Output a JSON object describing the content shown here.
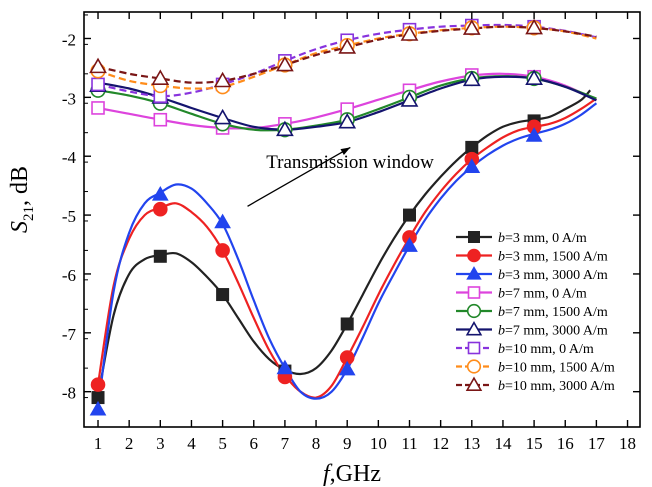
{
  "chart_data": {
    "type": "line",
    "x_ticks": [
      1,
      2,
      3,
      4,
      5,
      6,
      7,
      8,
      9,
      10,
      11,
      12,
      13,
      14,
      15,
      16,
      17,
      18
    ],
    "y_ticks": [
      -8,
      -7,
      -6,
      -5,
      -4,
      -3,
      -2
    ],
    "xlim": [
      0.55,
      18.4
    ],
    "ylim": [
      -8.6,
      -1.55
    ],
    "xlabel": {
      "italic": "f",
      "rest": ",GHz"
    },
    "ylabel": {
      "italic": "S",
      "sub": "21",
      "rest": ", dB"
    },
    "annotation": {
      "text": "Transmission window",
      "arrow_from": [
        5.8,
        -4.85
      ],
      "arrow_to": [
        9.1,
        -3.85
      ],
      "text_pos": [
        6.4,
        -4.2
      ]
    },
    "series": [
      {
        "name": "3 mm, 0 A/m",
        "group": "b=3",
        "color": "#222222",
        "marker": "square",
        "filled": true,
        "dashed": false,
        "points": [
          [
            1,
            -8.1
          ],
          [
            3,
            -5.7
          ],
          [
            5,
            -6.35
          ],
          [
            7,
            -7.65
          ],
          [
            9,
            -6.85
          ],
          [
            11,
            -5.0
          ],
          [
            13,
            -3.85
          ],
          [
            15,
            -3.4
          ]
        ],
        "curve": [
          [
            1,
            -8.1
          ],
          [
            1.5,
            -6.7
          ],
          [
            2,
            -6.0
          ],
          [
            2.5,
            -5.75
          ],
          [
            3,
            -5.68
          ],
          [
            3.5,
            -5.65
          ],
          [
            4,
            -5.8
          ],
          [
            4.5,
            -6.05
          ],
          [
            5,
            -6.35
          ],
          [
            5.5,
            -6.75
          ],
          [
            6,
            -7.15
          ],
          [
            6.5,
            -7.45
          ],
          [
            7,
            -7.63
          ],
          [
            7.5,
            -7.7
          ],
          [
            8,
            -7.6
          ],
          [
            8.5,
            -7.3
          ],
          [
            9,
            -6.85
          ],
          [
            9.5,
            -6.35
          ],
          [
            10,
            -5.85
          ],
          [
            10.5,
            -5.4
          ],
          [
            11,
            -5.0
          ],
          [
            11.5,
            -4.65
          ],
          [
            12,
            -4.35
          ],
          [
            12.5,
            -4.08
          ],
          [
            13,
            -3.85
          ],
          [
            13.5,
            -3.65
          ],
          [
            14,
            -3.5
          ],
          [
            14.5,
            -3.42
          ],
          [
            15,
            -3.38
          ],
          [
            15.5,
            -3.33
          ],
          [
            16,
            -3.2
          ],
          [
            16.5,
            -3.05
          ],
          [
            16.8,
            -2.88
          ]
        ]
      },
      {
        "name": "3 mm, 1500 A/m",
        "group": "b=3",
        "color": "#ee2222",
        "marker": "circle",
        "filled": true,
        "dashed": false,
        "points": [
          [
            1,
            -7.88
          ],
          [
            3,
            -4.9
          ],
          [
            5,
            -5.6
          ],
          [
            7,
            -7.75
          ],
          [
            9,
            -7.42
          ],
          [
            11,
            -5.38
          ],
          [
            13,
            -4.05
          ],
          [
            15,
            -3.5
          ]
        ],
        "curve": [
          [
            1,
            -7.88
          ],
          [
            1.5,
            -6.2
          ],
          [
            2,
            -5.4
          ],
          [
            2.5,
            -5.0
          ],
          [
            3,
            -4.88
          ],
          [
            3.5,
            -4.8
          ],
          [
            4,
            -4.95
          ],
          [
            4.5,
            -5.2
          ],
          [
            5,
            -5.6
          ],
          [
            5.5,
            -6.15
          ],
          [
            6,
            -6.75
          ],
          [
            6.5,
            -7.3
          ],
          [
            7,
            -7.72
          ],
          [
            7.5,
            -8.0
          ],
          [
            8,
            -8.1
          ],
          [
            8.5,
            -7.9
          ],
          [
            9,
            -7.42
          ],
          [
            9.5,
            -6.9
          ],
          [
            10,
            -6.35
          ],
          [
            10.5,
            -5.85
          ],
          [
            11,
            -5.38
          ],
          [
            11.5,
            -4.95
          ],
          [
            12,
            -4.6
          ],
          [
            12.5,
            -4.3
          ],
          [
            13,
            -4.05
          ],
          [
            13.5,
            -3.85
          ],
          [
            14,
            -3.68
          ],
          [
            14.5,
            -3.56
          ],
          [
            15,
            -3.5
          ],
          [
            15.5,
            -3.45
          ],
          [
            16,
            -3.35
          ],
          [
            16.5,
            -3.2
          ],
          [
            17,
            -3.02
          ]
        ]
      },
      {
        "name": "3 mm, 3000 A/m",
        "group": "b=3",
        "color": "#2244ee",
        "marker": "triangle",
        "filled": true,
        "dashed": false,
        "points": [
          [
            1,
            -8.3
          ],
          [
            3,
            -4.65
          ],
          [
            5,
            -5.12
          ],
          [
            7,
            -7.6
          ],
          [
            9,
            -7.62
          ],
          [
            11,
            -5.52
          ],
          [
            13,
            -4.18
          ],
          [
            15,
            -3.65
          ]
        ],
        "curve": [
          [
            1,
            -8.3
          ],
          [
            1.5,
            -6.3
          ],
          [
            2,
            -5.3
          ],
          [
            2.5,
            -4.8
          ],
          [
            3,
            -4.62
          ],
          [
            3.5,
            -4.48
          ],
          [
            4,
            -4.55
          ],
          [
            4.5,
            -4.8
          ],
          [
            5,
            -5.15
          ],
          [
            5.5,
            -5.75
          ],
          [
            6,
            -6.45
          ],
          [
            6.5,
            -7.1
          ],
          [
            7,
            -7.6
          ],
          [
            7.5,
            -8.0
          ],
          [
            8,
            -8.12
          ],
          [
            8.5,
            -8.0
          ],
          [
            9,
            -7.62
          ],
          [
            9.5,
            -7.08
          ],
          [
            10,
            -6.5
          ],
          [
            10.5,
            -6.0
          ],
          [
            11,
            -5.52
          ],
          [
            11.5,
            -5.08
          ],
          [
            12,
            -4.72
          ],
          [
            12.5,
            -4.42
          ],
          [
            13,
            -4.18
          ],
          [
            13.5,
            -3.98
          ],
          [
            14,
            -3.82
          ],
          [
            14.5,
            -3.7
          ],
          [
            15,
            -3.62
          ],
          [
            15.5,
            -3.55
          ],
          [
            16,
            -3.45
          ],
          [
            16.5,
            -3.3
          ],
          [
            17,
            -3.1
          ]
        ]
      },
      {
        "name": "7 mm, 0 A/m",
        "group": "b=7",
        "color": "#dd44dd",
        "marker": "square",
        "filled": false,
        "dashed": false,
        "points": [
          [
            1,
            -3.18
          ],
          [
            3,
            -3.38
          ],
          [
            5,
            -3.52
          ],
          [
            7,
            -3.45
          ],
          [
            9,
            -3.2
          ],
          [
            11,
            -2.88
          ],
          [
            13,
            -2.62
          ],
          [
            15,
            -2.65
          ]
        ],
        "curve": [
          [
            1,
            -3.18
          ],
          [
            2,
            -3.28
          ],
          [
            3,
            -3.38
          ],
          [
            4,
            -3.47
          ],
          [
            5,
            -3.52
          ],
          [
            6,
            -3.52
          ],
          [
            7,
            -3.45
          ],
          [
            8,
            -3.34
          ],
          [
            9,
            -3.2
          ],
          [
            10,
            -3.04
          ],
          [
            11,
            -2.88
          ],
          [
            12,
            -2.73
          ],
          [
            13,
            -2.63
          ],
          [
            14,
            -2.6
          ],
          [
            15,
            -2.65
          ],
          [
            16,
            -2.8
          ],
          [
            17,
            -3.05
          ]
        ]
      },
      {
        "name": "7 mm, 1500 A/m",
        "group": "b=7",
        "color": "#22882a",
        "marker": "circle",
        "filled": false,
        "dashed": false,
        "points": [
          [
            1,
            -2.88
          ],
          [
            3,
            -3.1
          ],
          [
            5,
            -3.45
          ],
          [
            7,
            -3.55
          ],
          [
            9,
            -3.38
          ],
          [
            11,
            -3.0
          ],
          [
            13,
            -2.68
          ],
          [
            15,
            -2.68
          ]
        ],
        "curve": [
          [
            1,
            -2.88
          ],
          [
            2,
            -2.97
          ],
          [
            3,
            -3.1
          ],
          [
            4,
            -3.28
          ],
          [
            5,
            -3.45
          ],
          [
            6,
            -3.55
          ],
          [
            7,
            -3.55
          ],
          [
            8,
            -3.48
          ],
          [
            9,
            -3.38
          ],
          [
            10,
            -3.2
          ],
          [
            11,
            -3.0
          ],
          [
            12,
            -2.8
          ],
          [
            13,
            -2.68
          ],
          [
            14,
            -2.64
          ],
          [
            15,
            -2.68
          ],
          [
            16,
            -2.82
          ],
          [
            17,
            -3.02
          ]
        ]
      },
      {
        "name": "7 mm, 3000 A/m",
        "group": "b=7",
        "color": "#14146e",
        "marker": "triangle",
        "filled": false,
        "dashed": false,
        "points": [
          [
            1,
            -2.8
          ],
          [
            3,
            -3.0
          ],
          [
            5,
            -3.35
          ],
          [
            7,
            -3.55
          ],
          [
            9,
            -3.42
          ],
          [
            11,
            -3.05
          ],
          [
            13,
            -2.7
          ],
          [
            15,
            -2.68
          ]
        ],
        "curve": [
          [
            1,
            -2.75
          ],
          [
            2,
            -2.85
          ],
          [
            3,
            -3.0
          ],
          [
            4,
            -3.18
          ],
          [
            5,
            -3.35
          ],
          [
            6,
            -3.5
          ],
          [
            7,
            -3.55
          ],
          [
            8,
            -3.5
          ],
          [
            9,
            -3.42
          ],
          [
            10,
            -3.25
          ],
          [
            11,
            -3.05
          ],
          [
            12,
            -2.85
          ],
          [
            13,
            -2.7
          ],
          [
            14,
            -2.65
          ],
          [
            15,
            -2.68
          ],
          [
            16,
            -2.82
          ],
          [
            17,
            -3.05
          ]
        ]
      },
      {
        "name": "10 mm, 0 A/m",
        "group": "b=10",
        "color": "#8833dd",
        "marker": "square",
        "filled": false,
        "dashed": true,
        "points": [
          [
            1,
            -2.78
          ],
          [
            3,
            -2.98
          ],
          [
            5,
            -2.78
          ],
          [
            7,
            -2.38
          ],
          [
            9,
            -2.03
          ],
          [
            11,
            -1.85
          ],
          [
            13,
            -1.78
          ],
          [
            15,
            -1.8
          ]
        ],
        "curve": [
          [
            1,
            -2.78
          ],
          [
            2,
            -2.9
          ],
          [
            3,
            -2.98
          ],
          [
            4,
            -2.92
          ],
          [
            5,
            -2.78
          ],
          [
            6,
            -2.6
          ],
          [
            7,
            -2.38
          ],
          [
            8,
            -2.18
          ],
          [
            9,
            -2.03
          ],
          [
            10,
            -1.92
          ],
          [
            11,
            -1.85
          ],
          [
            12,
            -1.8
          ],
          [
            13,
            -1.78
          ],
          [
            14,
            -1.77
          ],
          [
            15,
            -1.8
          ],
          [
            16,
            -1.87
          ],
          [
            17,
            -1.98
          ]
        ]
      },
      {
        "name": "10 mm, 1500 A/m",
        "group": "b=10",
        "color": "#ff8c1a",
        "marker": "circle",
        "filled": false,
        "dashed": true,
        "points": [
          [
            1,
            -2.55
          ],
          [
            3,
            -2.8
          ],
          [
            5,
            -2.82
          ],
          [
            7,
            -2.45
          ],
          [
            9,
            -2.12
          ],
          [
            11,
            -1.92
          ],
          [
            13,
            -1.82
          ],
          [
            15,
            -1.82
          ]
        ],
        "curve": [
          [
            1,
            -2.55
          ],
          [
            2,
            -2.72
          ],
          [
            3,
            -2.8
          ],
          [
            4,
            -2.85
          ],
          [
            5,
            -2.82
          ],
          [
            6,
            -2.65
          ],
          [
            7,
            -2.45
          ],
          [
            8,
            -2.25
          ],
          [
            9,
            -2.12
          ],
          [
            10,
            -2.0
          ],
          [
            11,
            -1.92
          ],
          [
            12,
            -1.86
          ],
          [
            13,
            -1.82
          ],
          [
            14,
            -1.8
          ],
          [
            15,
            -1.82
          ],
          [
            16,
            -1.88
          ],
          [
            17,
            -2.0
          ]
        ]
      },
      {
        "name": "10 mm, 3000 A/m",
        "group": "b=10",
        "color": "#7a1616",
        "marker": "triangle",
        "filled": false,
        "dashed": true,
        "points": [
          [
            1,
            -2.48
          ],
          [
            3,
            -2.68
          ],
          [
            5,
            -2.72
          ],
          [
            7,
            -2.45
          ],
          [
            9,
            -2.15
          ],
          [
            11,
            -1.93
          ],
          [
            13,
            -1.83
          ],
          [
            15,
            -1.82
          ]
        ],
        "curve": [
          [
            1,
            -2.48
          ],
          [
            2,
            -2.6
          ],
          [
            3,
            -2.68
          ],
          [
            4,
            -2.75
          ],
          [
            5,
            -2.72
          ],
          [
            6,
            -2.6
          ],
          [
            7,
            -2.45
          ],
          [
            8,
            -2.28
          ],
          [
            9,
            -2.15
          ],
          [
            10,
            -2.02
          ],
          [
            11,
            -1.93
          ],
          [
            12,
            -1.87
          ],
          [
            13,
            -1.83
          ],
          [
            14,
            -1.8
          ],
          [
            15,
            -1.82
          ],
          [
            16,
            -1.88
          ],
          [
            17,
            -1.97
          ]
        ]
      }
    ]
  }
}
